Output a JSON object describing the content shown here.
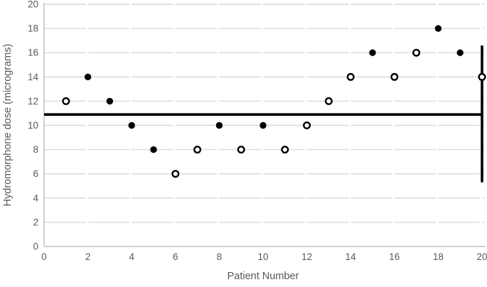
{
  "chart_data": {
    "type": "scatter",
    "title": "",
    "xlabel": "Patient Number",
    "ylabel": "Hydromorphone dose (micrograms)",
    "xlim": [
      0,
      20
    ],
    "ylim": [
      0,
      20
    ],
    "xticks": [
      0,
      2,
      4,
      6,
      8,
      10,
      12,
      14,
      16,
      18,
      20
    ],
    "yticks": [
      0,
      2,
      4,
      6,
      8,
      10,
      12,
      14,
      16,
      18,
      20
    ],
    "grid": "horizontal-only",
    "legend_position": "none",
    "points": [
      {
        "x": 1,
        "y": 12,
        "marker": "open"
      },
      {
        "x": 2,
        "y": 14,
        "marker": "filled"
      },
      {
        "x": 3,
        "y": 12,
        "marker": "filled"
      },
      {
        "x": 4,
        "y": 10,
        "marker": "filled"
      },
      {
        "x": 5,
        "y": 8,
        "marker": "filled"
      },
      {
        "x": 6,
        "y": 6,
        "marker": "open"
      },
      {
        "x": 7,
        "y": 8,
        "marker": "open"
      },
      {
        "x": 8,
        "y": 10,
        "marker": "filled"
      },
      {
        "x": 9,
        "y": 8,
        "marker": "open"
      },
      {
        "x": 10,
        "y": 10,
        "marker": "filled"
      },
      {
        "x": 11,
        "y": 8,
        "marker": "open"
      },
      {
        "x": 12,
        "y": 10,
        "marker": "open"
      },
      {
        "x": 13,
        "y": 12,
        "marker": "open"
      },
      {
        "x": 14,
        "y": 14,
        "marker": "open"
      },
      {
        "x": 15,
        "y": 16,
        "marker": "filled"
      },
      {
        "x": 16,
        "y": 14,
        "marker": "open"
      },
      {
        "x": 17,
        "y": 16,
        "marker": "open"
      },
      {
        "x": 18,
        "y": 18,
        "marker": "filled"
      },
      {
        "x": 19,
        "y": 16,
        "marker": "filled"
      },
      {
        "x": 20,
        "y": 14,
        "marker": "open"
      },
      {
        "x": 20,
        "y": 14,
        "marker": "open",
        "note": ""
      }
    ],
    "reference_line": {
      "y": 10.9,
      "color": "#000000"
    },
    "range_bar": {
      "x": 20,
      "y_from": 5.3,
      "y_to": 16.6,
      "color": "#000000"
    },
    "colors": {
      "marker": "#000000",
      "marker_open_fill": "#ffffff",
      "gridline": "#d9d9d9",
      "axis_line": "#bfbfbf",
      "tick_label": "#595959",
      "axis_title": "#595959",
      "background": "#ffffff"
    }
  }
}
